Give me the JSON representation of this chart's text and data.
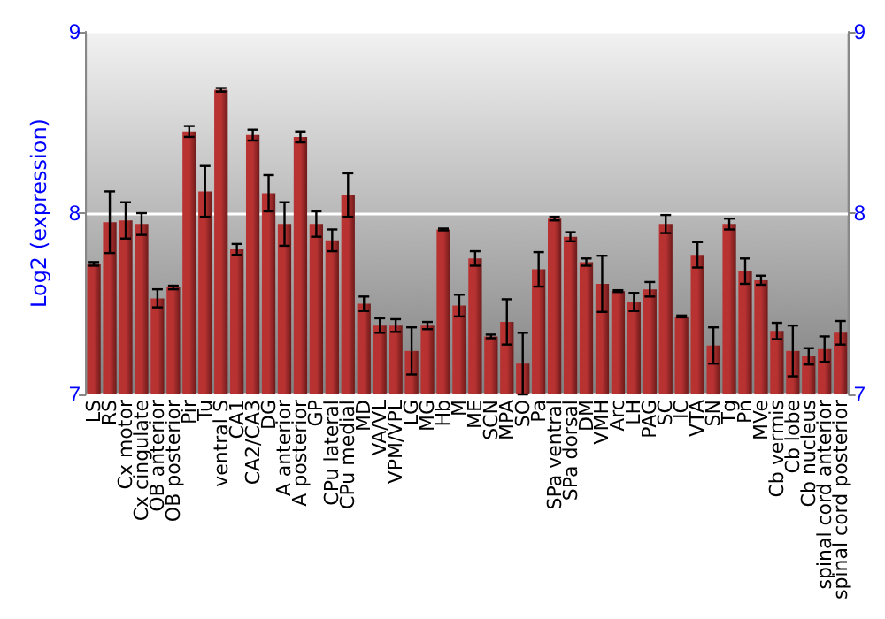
{
  "chart_data": {
    "type": "bar",
    "ylabel": "Log2 (expression)",
    "categories": [
      "LS",
      "RS",
      "Cx motor",
      "Cx cingulate",
      "OB anterior",
      "OB posterior",
      "Pir",
      "Tu",
      "ventral S",
      "CA1",
      "CA2/CA3",
      "DG",
      "A anterior",
      "A posterior",
      "GP",
      "CPu lateral",
      "CPu medial",
      "MD",
      "VA/VL",
      "VPM/VPL",
      "LG",
      "MG",
      "Hb",
      "M",
      "ME",
      "SCN",
      "MPA",
      "SO",
      "Pa",
      "SPa ventral",
      "SPa dorsal",
      "DM",
      "VMH",
      "Arc",
      "LH",
      "PAG",
      "SC",
      "IC",
      "VTA",
      "SN",
      "Tg",
      "Pn",
      "MVe",
      "Cb vermis",
      "Cb lobe",
      "Cb nucleus",
      "spinal cord anterior",
      "spinal cord posterior"
    ],
    "values": [
      7.72,
      7.95,
      7.96,
      7.94,
      7.53,
      7.59,
      8.45,
      8.12,
      8.68,
      7.8,
      8.43,
      8.11,
      7.94,
      8.42,
      7.94,
      7.85,
      8.1,
      7.5,
      7.38,
      7.38,
      7.24,
      7.38,
      7.91,
      7.49,
      7.75,
      7.32,
      7.4,
      7.17,
      7.69,
      7.97,
      7.87,
      7.73,
      7.61,
      7.57,
      7.51,
      7.58,
      7.94,
      7.43,
      7.77,
      7.27,
      7.94,
      7.68,
      7.63,
      7.35,
      7.24,
      7.21,
      7.25,
      7.34
    ],
    "errors": [
      0.01,
      0.17,
      0.1,
      0.06,
      0.05,
      0.01,
      0.03,
      0.14,
      0.01,
      0.03,
      0.03,
      0.1,
      0.12,
      0.03,
      0.07,
      0.06,
      0.12,
      0.04,
      0.04,
      0.035,
      0.13,
      0.02,
      0.005,
      0.06,
      0.04,
      0.01,
      0.125,
      0.17,
      0.095,
      0.01,
      0.025,
      0.02,
      0.155,
      0.005,
      0.05,
      0.04,
      0.05,
      0.005,
      0.07,
      0.1,
      0.03,
      0.07,
      0.025,
      0.045,
      0.14,
      0.045,
      0.07,
      0.065
    ],
    "color": "#b83232",
    "ylim": [
      7,
      9
    ],
    "yticks": [
      7,
      8,
      9
    ],
    "y2lim": [
      7,
      9
    ],
    "y2ticks": [
      7,
      8,
      9
    ],
    "grid": "y"
  }
}
